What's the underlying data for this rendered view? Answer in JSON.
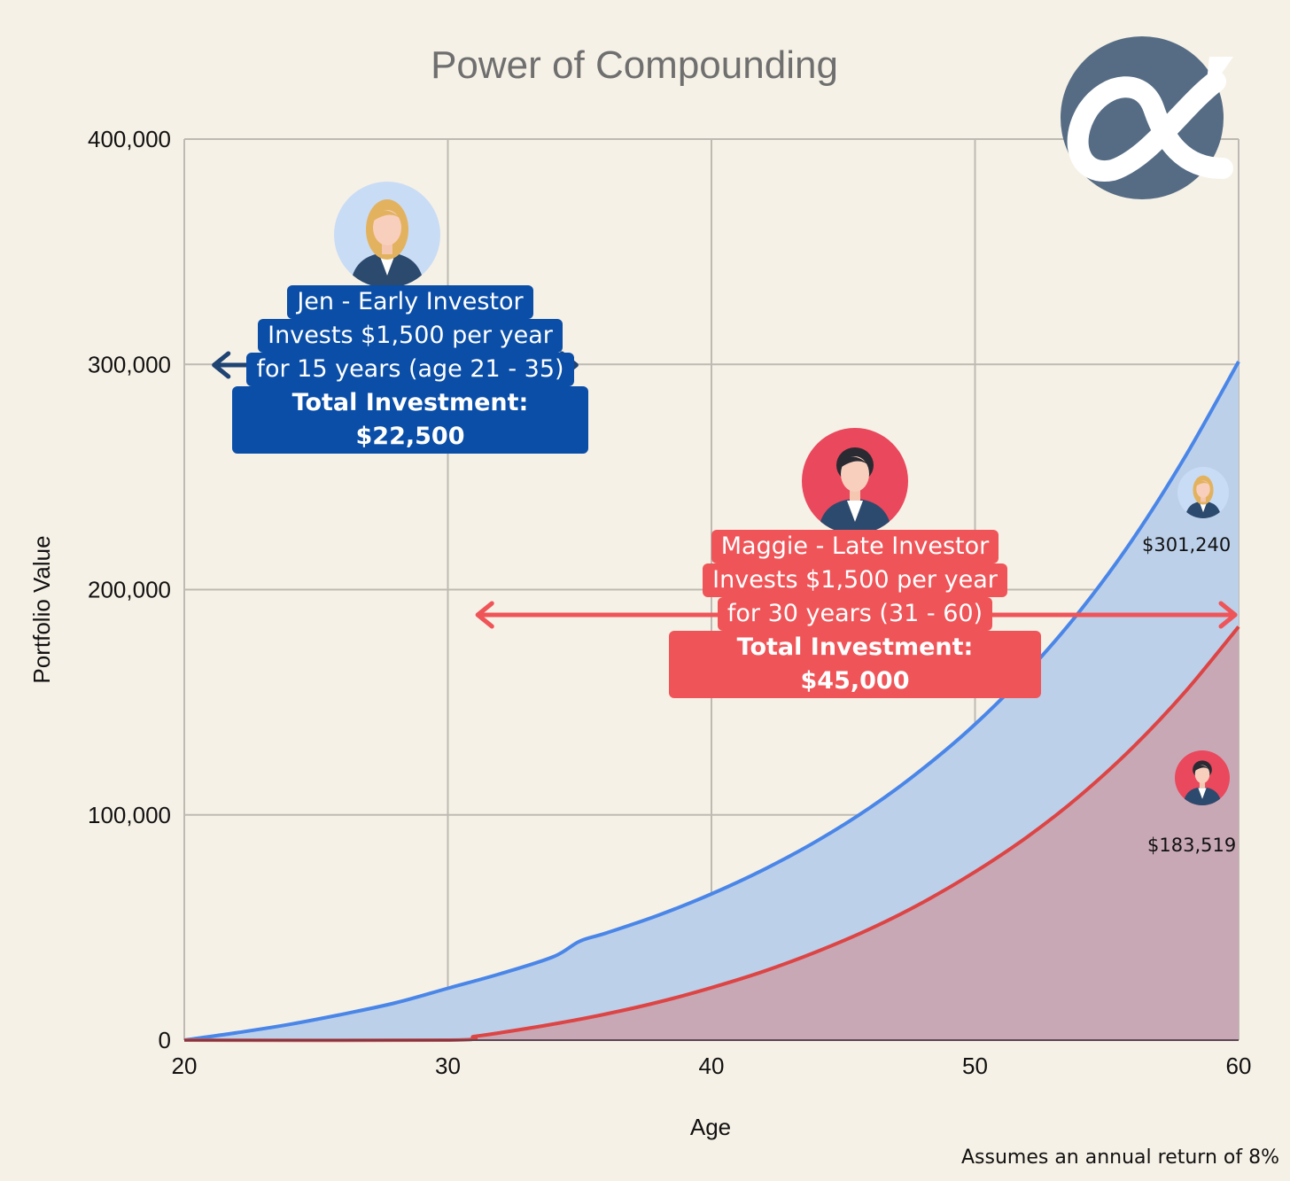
{
  "chart_data": {
    "type": "area",
    "title": "Power of Compounding",
    "xlabel": "Age",
    "ylabel": "Portfolio Value",
    "xlim": [
      20,
      60
    ],
    "ylim": [
      0,
      400000
    ],
    "x_ticks": [
      "20",
      "30",
      "40",
      "50",
      "60"
    ],
    "y_ticks": [
      "0",
      "100,000",
      "200,000",
      "300,000",
      "400,000"
    ],
    "grid": true,
    "series": [
      {
        "color": "#4a86e8",
        "fill": "#bcd0ea",
        "points": [
          [
            20,
            0
          ],
          [
            22,
            3300
          ],
          [
            24,
            7000
          ],
          [
            26,
            11500
          ],
          [
            28,
            16500
          ],
          [
            30,
            23000
          ],
          [
            32,
            29500
          ],
          [
            34,
            37000
          ],
          [
            35,
            43900
          ],
          [
            36,
            47500
          ],
          [
            38,
            55500
          ],
          [
            40,
            64900
          ],
          [
            42,
            75800
          ],
          [
            44,
            88400
          ],
          [
            46,
            103100
          ],
          [
            48,
            120300
          ],
          [
            50,
            140200
          ],
          [
            52,
            163600
          ],
          [
            54,
            190800
          ],
          [
            56,
            222600
          ],
          [
            58,
            259600
          ],
          [
            60,
            301240
          ]
        ]
      },
      {
        "color": "#dd4444",
        "fill": "#c9a8b6",
        "points": [
          [
            20,
            0
          ],
          [
            30,
            0
          ],
          [
            31,
            1600
          ],
          [
            32,
            3300
          ],
          [
            34,
            7100
          ],
          [
            36,
            11600
          ],
          [
            38,
            16900
          ],
          [
            40,
            23300
          ],
          [
            42,
            30600
          ],
          [
            44,
            39300
          ],
          [
            46,
            49300
          ],
          [
            48,
            61000
          ],
          [
            50,
            74700
          ],
          [
            52,
            90400
          ],
          [
            54,
            108700
          ],
          [
            56,
            130100
          ],
          [
            58,
            155000
          ],
          [
            60,
            183519
          ]
        ]
      }
    ],
    "annotations": {
      "jen": {
        "lines": [
          "Jen - Early Investor",
          "Invests $1,500 per year",
          "for 15 years (age 21 - 35)"
        ],
        "total": "Total Investment: $22,500",
        "range": [
          21,
          35
        ],
        "color": "#0a4ea8",
        "arrow_color": "#1f4372",
        "end_value_label": "$301,240",
        "avatar_bg": "#c9dcf5",
        "hair": "#e3b25e"
      },
      "maggie": {
        "lines": [
          "Maggie - Late Investor",
          "Invests $1,500 per year",
          "for 30 years (31 - 60)"
        ],
        "total": "Total Investment: $45,000",
        "range": [
          31,
          60
        ],
        "color": "#ef5558",
        "arrow_color": "#ef5558",
        "end_value_label": "$183,519",
        "avatar_bg": "#e9485d",
        "hair": "#2a2a33"
      }
    },
    "footnote": "Assumes an annual return of 8%"
  },
  "logo": {
    "name": "alpha-logo-icon",
    "bg": "#556c84",
    "fg": "#ffffff"
  }
}
